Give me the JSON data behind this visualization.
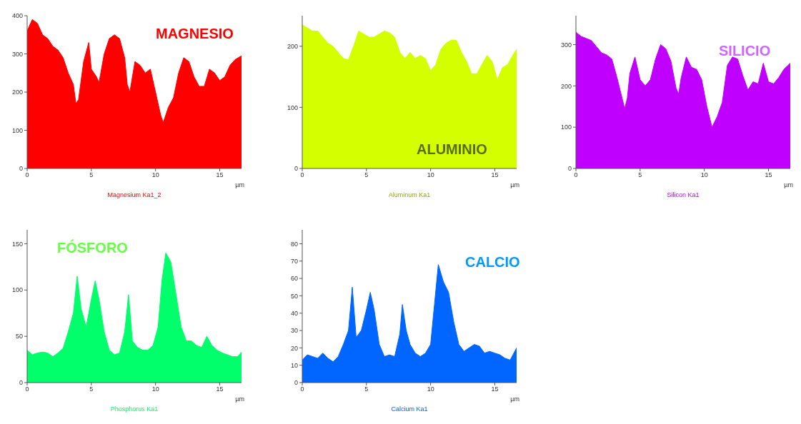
{
  "chart_data": [
    {
      "type": "area",
      "title": "MAGNESIO",
      "xlabel": "µm",
      "annotations": [
        "Magnesium Ka1_2"
      ],
      "color": "#ff0000",
      "xlim": [
        0,
        16.7
      ],
      "xticks": [
        0,
        5,
        10,
        15
      ],
      "ylim": [
        0,
        400
      ],
      "yticks": [
        0,
        100,
        200,
        300,
        400
      ],
      "x": [
        0,
        0.4,
        0.8,
        1.2,
        1.6,
        2.0,
        2.4,
        2.8,
        3.2,
        3.6,
        3.8,
        4.0,
        4.2,
        4.4,
        4.8,
        5.0,
        5.4,
        5.6,
        6.0,
        6.4,
        6.8,
        7.2,
        7.6,
        7.8,
        8.0,
        8.4,
        8.8,
        9.2,
        9.6,
        10.0,
        10.4,
        10.6,
        11.0,
        11.4,
        11.8,
        12.2,
        12.6,
        13.0,
        13.4,
        13.8,
        14.2,
        14.6,
        15.0,
        15.4,
        15.8,
        16.2,
        16.7
      ],
      "values": [
        360,
        390,
        380,
        350,
        340,
        320,
        310,
        290,
        250,
        220,
        170,
        180,
        230,
        280,
        330,
        260,
        240,
        225,
        300,
        340,
        350,
        340,
        290,
        220,
        200,
        280,
        270,
        250,
        260,
        200,
        140,
        120,
        160,
        185,
        250,
        290,
        280,
        240,
        215,
        215,
        260,
        250,
        230,
        240,
        270,
        285,
        295
      ]
    },
    {
      "type": "area",
      "title": "ALUMINIO",
      "xlabel": "µm",
      "annotations": [
        "Aluminum Ka1"
      ],
      "color": "#d4ff00",
      "xlim": [
        0,
        16.7
      ],
      "xticks": [
        0,
        5,
        10,
        15
      ],
      "ylim": [
        0,
        250
      ],
      "yticks": [
        0,
        100,
        200
      ],
      "x": [
        0,
        0.4,
        0.8,
        1.2,
        1.6,
        2.0,
        2.4,
        2.8,
        3.2,
        3.6,
        4.0,
        4.4,
        4.8,
        5.2,
        5.6,
        6.0,
        6.4,
        6.8,
        7.2,
        7.6,
        8.0,
        8.4,
        8.8,
        9.2,
        9.6,
        10.0,
        10.4,
        10.8,
        11.2,
        11.6,
        12.0,
        12.4,
        12.8,
        13.2,
        13.6,
        14.0,
        14.4,
        14.8,
        15.2,
        15.6,
        16.0,
        16.4,
        16.7
      ],
      "values": [
        235,
        230,
        225,
        225,
        215,
        205,
        200,
        190,
        180,
        178,
        200,
        225,
        220,
        215,
        215,
        220,
        225,
        222,
        215,
        190,
        180,
        190,
        180,
        185,
        180,
        160,
        170,
        195,
        205,
        210,
        210,
        190,
        175,
        155,
        155,
        170,
        185,
        175,
        145,
        165,
        170,
        185,
        195
      ]
    },
    {
      "type": "area",
      "title": "SILICIO",
      "xlabel": "µm",
      "annotations": [
        "Silicon Ka1"
      ],
      "color": "#c000ff",
      "xlim": [
        0,
        16.7
      ],
      "xticks": [
        0,
        5,
        10,
        15
      ],
      "ylim": [
        0,
        370
      ],
      "yticks": [
        0,
        100,
        200,
        300
      ],
      "x": [
        0,
        0.4,
        0.8,
        1.2,
        1.6,
        2.0,
        2.4,
        2.8,
        3.2,
        3.6,
        3.8,
        4.0,
        4.2,
        4.6,
        5.0,
        5.4,
        5.8,
        6.2,
        6.6,
        7.0,
        7.4,
        7.8,
        8.0,
        8.2,
        8.6,
        9.0,
        9.4,
        9.8,
        10.2,
        10.6,
        11.0,
        11.4,
        11.8,
        12.2,
        12.6,
        13.0,
        13.4,
        13.8,
        14.2,
        14.6,
        15.0,
        15.4,
        15.8,
        16.2,
        16.7
      ],
      "values": [
        330,
        320,
        315,
        310,
        295,
        280,
        275,
        265,
        220,
        170,
        145,
        170,
        230,
        270,
        215,
        200,
        215,
        265,
        300,
        290,
        260,
        195,
        180,
        220,
        270,
        245,
        240,
        215,
        150,
        100,
        125,
        160,
        250,
        270,
        265,
        225,
        190,
        210,
        205,
        255,
        210,
        205,
        220,
        240,
        255
      ]
    },
    {
      "type": "area",
      "title": "FÓSFORO",
      "xlabel": "µm",
      "annotations": [
        "Phosphorus Ka1"
      ],
      "color": "#00ff6a",
      "xlim": [
        0,
        16.7
      ],
      "xticks": [
        0,
        5,
        10,
        15
      ],
      "ylim": [
        0,
        165
      ],
      "yticks": [
        0,
        50,
        100,
        150
      ],
      "x": [
        0,
        0.4,
        0.8,
        1.2,
        1.6,
        2.0,
        2.4,
        2.8,
        3.2,
        3.6,
        3.9,
        4.2,
        4.6,
        5.0,
        5.3,
        5.6,
        6.0,
        6.4,
        6.8,
        7.2,
        7.6,
        7.9,
        8.2,
        8.6,
        9.0,
        9.4,
        9.8,
        10.2,
        10.5,
        10.8,
        11.2,
        11.6,
        12.0,
        12.4,
        12.8,
        13.2,
        13.6,
        14.0,
        14.4,
        14.8,
        15.2,
        15.6,
        16.0,
        16.4,
        16.7
      ],
      "values": [
        35,
        30,
        32,
        33,
        32,
        28,
        32,
        37,
        55,
        75,
        115,
        80,
        60,
        90,
        110,
        90,
        55,
        35,
        30,
        32,
        55,
        95,
        45,
        38,
        35,
        35,
        40,
        60,
        110,
        140,
        130,
        95,
        60,
        45,
        45,
        40,
        38,
        50,
        40,
        35,
        32,
        30,
        28,
        28,
        33
      ]
    },
    {
      "type": "area",
      "title": "CALCIO",
      "xlabel": "µm",
      "annotations": [
        "Calcium Ka1"
      ],
      "color": "#0066ff",
      "xlim": [
        0,
        16.7
      ],
      "xticks": [
        0,
        5,
        10,
        15
      ],
      "ylim": [
        0,
        88
      ],
      "yticks": [
        0,
        10,
        20,
        30,
        40,
        50,
        60,
        70,
        80
      ],
      "x": [
        0,
        0.4,
        0.8,
        1.2,
        1.6,
        2.0,
        2.4,
        2.8,
        3.2,
        3.6,
        3.9,
        4.2,
        4.6,
        5.0,
        5.3,
        5.6,
        6.0,
        6.4,
        6.8,
        7.2,
        7.6,
        7.8,
        8.1,
        8.4,
        8.8,
        9.2,
        9.6,
        10.0,
        10.3,
        10.6,
        11.0,
        11.4,
        11.8,
        12.2,
        12.6,
        13.0,
        13.4,
        13.8,
        14.2,
        14.6,
        15.0,
        15.4,
        15.8,
        16.2,
        16.7
      ],
      "values": [
        13,
        16,
        15,
        14,
        17,
        14,
        12,
        15,
        22,
        30,
        55,
        26,
        30,
        42,
        52,
        42,
        22,
        15,
        16,
        15,
        28,
        45,
        30,
        22,
        17,
        15,
        17,
        22,
        45,
        68,
        58,
        52,
        35,
        22,
        18,
        20,
        22,
        21,
        17,
        18,
        17,
        16,
        14,
        13,
        20
      ]
    }
  ]
}
